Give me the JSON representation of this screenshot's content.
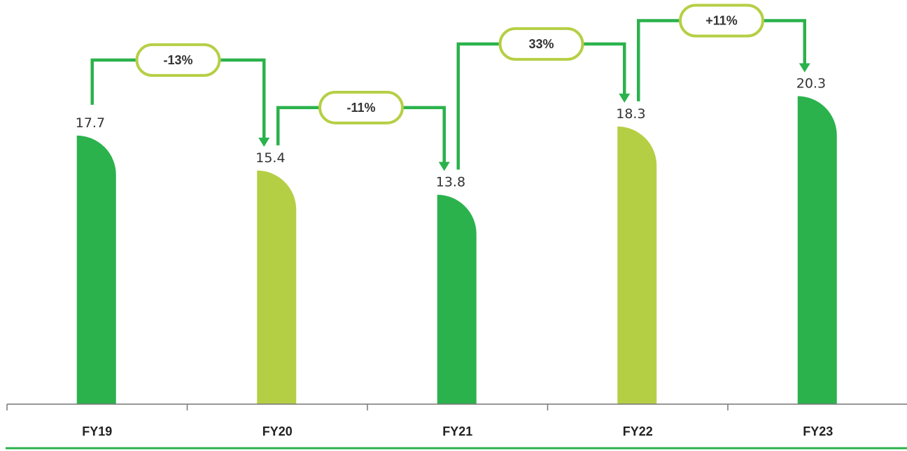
{
  "chart_data": {
    "type": "bar",
    "categories": [
      "FY19",
      "FY20",
      "FY21",
      "FY22",
      "FY23"
    ],
    "values": [
      17.7,
      15.4,
      13.8,
      18.3,
      20.3
    ],
    "value_labels": [
      "17.7",
      "15.4",
      "13.8",
      "18.3",
      "20.3"
    ],
    "bar_colors": [
      "#2bb24c",
      "#b5cf45",
      "#2bb24c",
      "#b5cf45",
      "#2bb24c"
    ],
    "changes": [
      {
        "from": "FY19",
        "to": "FY20",
        "label": "-13%"
      },
      {
        "from": "FY20",
        "to": "FY21",
        "label": "-11%"
      },
      {
        "from": "FY21",
        "to": "FY22",
        "label": "33%"
      },
      {
        "from": "FY22",
        "to": "FY23",
        "label": "+11%"
      }
    ],
    "connector_color": "#2bb24c",
    "badge_border_color": "#b5cf45",
    "grid": false,
    "legend": "none"
  }
}
